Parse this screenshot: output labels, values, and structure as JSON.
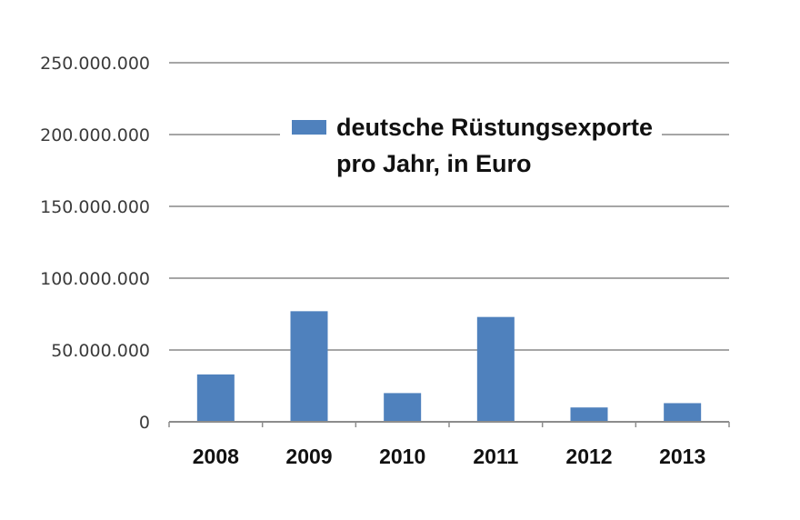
{
  "chart_data": {
    "type": "bar",
    "categories": [
      "2008",
      "2009",
      "2010",
      "2011",
      "2012",
      "2013"
    ],
    "series": [
      {
        "name": "deutsche Rüstungsexporte pro Jahr, in Euro",
        "name_lines": [
          "deutsche Rüstungsexporte",
          "pro Jahr, in Euro"
        ],
        "values": [
          33000000,
          77000000,
          20000000,
          73000000,
          10000000,
          13000000
        ]
      }
    ],
    "yticks": [
      "0",
      "50.000.000",
      "100.000.000",
      "150.000.000",
      "200.000.000",
      "250.000.000"
    ],
    "ylim": [
      0,
      250000000
    ],
    "grid": true,
    "legend": "top-center",
    "colors": {
      "bar": "#4f81bd",
      "grid": "#a6a6a6",
      "axis": "#8c8c8c"
    }
  }
}
